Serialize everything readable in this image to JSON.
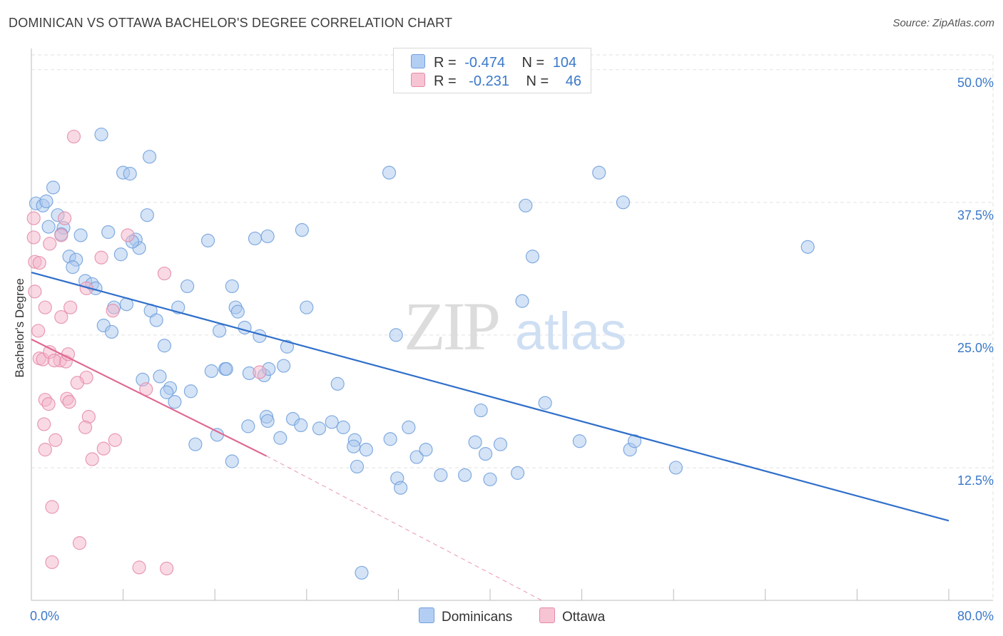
{
  "title": "DOMINICAN VS OTTAWA BACHELOR'S DEGREE CORRELATION CHART",
  "source": "Source: ZipAtlas.com",
  "watermark": {
    "zip": "ZIP",
    "atlas": "atlas"
  },
  "colors": {
    "blue_fill": "#a9c7ee",
    "blue_stroke": "#6f9fdc",
    "blue_line": "#2f6fca",
    "pink_fill": "#f4b6c9",
    "pink_stroke": "#e58aa8",
    "pink_line": "#e06892",
    "tick_label": "#3a78c9"
  },
  "legend": {
    "blue": {
      "r_label": "R =",
      "r_value": "-0.474",
      "n_label": "N =",
      "n_value": "104"
    },
    "pink": {
      "r_label": "R =",
      "r_value": "-0.231",
      "n_label": "N =",
      "n_value": "46"
    }
  },
  "bottom_legend": {
    "dominicans": "Dominicans",
    "ottawa": "Ottawa"
  },
  "chart_data": {
    "type": "scatter",
    "xlabel": "",
    "ylabel": "Bachelor's Degree",
    "xlim": [
      0,
      80
    ],
    "ylim": [
      0,
      52
    ],
    "x_tick_labels": [
      "0.0%",
      "80.0%"
    ],
    "y_tick_labels": [
      "12.5%",
      "25.0%",
      "37.5%",
      "50.0%"
    ],
    "y_ticks": [
      12.5,
      25,
      37.5,
      50
    ],
    "grid": true,
    "series": [
      {
        "name": "Dominicans",
        "color": "#a9c7ee",
        "points": [
          [
            0.4,
            37.4
          ],
          [
            1.0,
            37.2
          ],
          [
            1.3,
            37.6
          ],
          [
            1.9,
            38.9
          ],
          [
            2.3,
            36.3
          ],
          [
            1.5,
            35.2
          ],
          [
            2.8,
            35.1
          ],
          [
            4.3,
            34.4
          ],
          [
            2.6,
            34.5
          ],
          [
            3.3,
            32.4
          ],
          [
            3.9,
            32.1
          ],
          [
            3.6,
            31.4
          ],
          [
            4.7,
            30.1
          ],
          [
            5.3,
            29.8
          ],
          [
            5.6,
            29.4
          ],
          [
            6.1,
            43.9
          ],
          [
            6.7,
            34.7
          ],
          [
            7.8,
            32.6
          ],
          [
            8.0,
            40.3
          ],
          [
            8.6,
            40.2
          ],
          [
            10.3,
            41.8
          ],
          [
            10.1,
            36.3
          ],
          [
            9.1,
            34.0
          ],
          [
            9.4,
            33.2
          ],
          [
            8.3,
            27.9
          ],
          [
            7.2,
            27.6
          ],
          [
            10.4,
            27.3
          ],
          [
            10.9,
            26.4
          ],
          [
            6.3,
            25.9
          ],
          [
            7.0,
            25.3
          ],
          [
            11.6,
            24.0
          ],
          [
            12.8,
            27.6
          ],
          [
            13.6,
            29.6
          ],
          [
            15.4,
            33.9
          ],
          [
            16.4,
            25.4
          ],
          [
            16.9,
            21.8
          ],
          [
            15.7,
            21.6
          ],
          [
            17.5,
            29.6
          ],
          [
            17.8,
            27.6
          ],
          [
            18.0,
            27.2
          ],
          [
            18.6,
            25.7
          ],
          [
            19.0,
            21.4
          ],
          [
            19.5,
            34.1
          ],
          [
            19.9,
            24.9
          ],
          [
            20.3,
            21.2
          ],
          [
            20.7,
            21.8
          ],
          [
            20.6,
            34.3
          ],
          [
            22.3,
            23.9
          ],
          [
            22.0,
            22.1
          ],
          [
            23.6,
            34.9
          ],
          [
            24.0,
            27.6
          ],
          [
            26.7,
            20.4
          ],
          [
            11.2,
            21.1
          ],
          [
            9.7,
            20.8
          ],
          [
            12.1,
            20.0
          ],
          [
            11.8,
            19.6
          ],
          [
            13.9,
            19.7
          ],
          [
            12.5,
            18.7
          ],
          [
            14.3,
            14.7
          ],
          [
            16.2,
            15.6
          ],
          [
            17.5,
            13.1
          ],
          [
            18.9,
            16.4
          ],
          [
            20.5,
            17.3
          ],
          [
            20.6,
            16.9
          ],
          [
            21.7,
            15.3
          ],
          [
            22.8,
            17.1
          ],
          [
            23.5,
            16.5
          ],
          [
            25.1,
            16.2
          ],
          [
            26.2,
            16.8
          ],
          [
            27.2,
            16.3
          ],
          [
            28.2,
            15.1
          ],
          [
            28.1,
            14.5
          ],
          [
            28.4,
            12.6
          ],
          [
            29.2,
            14.2
          ],
          [
            31.3,
            15.2
          ],
          [
            31.9,
            11.5
          ],
          [
            32.2,
            10.6
          ],
          [
            32.9,
            16.3
          ],
          [
            33.6,
            13.5
          ],
          [
            34.4,
            14.2
          ],
          [
            35.7,
            11.8
          ],
          [
            37.8,
            11.8
          ],
          [
            38.7,
            14.9
          ],
          [
            40.0,
            11.4
          ],
          [
            39.6,
            13.8
          ],
          [
            40.9,
            14.7
          ],
          [
            42.4,
            12.0
          ],
          [
            42.8,
            28.2
          ],
          [
            43.1,
            37.2
          ],
          [
            43.7,
            32.4
          ],
          [
            44.8,
            18.6
          ],
          [
            39.2,
            17.9
          ],
          [
            47.8,
            15.0
          ],
          [
            49.5,
            40.3
          ],
          [
            51.6,
            37.5
          ],
          [
            52.2,
            14.2
          ],
          [
            52.6,
            15.0
          ],
          [
            56.2,
            12.5
          ],
          [
            67.7,
            33.3
          ],
          [
            28.8,
            2.6
          ],
          [
            31.2,
            40.3
          ],
          [
            31.8,
            25.0
          ],
          [
            8.8,
            33.8
          ],
          [
            17.0,
            21.8
          ]
        ]
      },
      {
        "name": "Ottawa",
        "color": "#f4b6c9",
        "points": [
          [
            3.7,
            43.7
          ],
          [
            0.2,
            36.0
          ],
          [
            2.9,
            36.0
          ],
          [
            0.2,
            34.2
          ],
          [
            2.6,
            34.4
          ],
          [
            1.6,
            33.6
          ],
          [
            8.4,
            34.4
          ],
          [
            0.3,
            31.9
          ],
          [
            0.7,
            31.8
          ],
          [
            6.1,
            32.3
          ],
          [
            11.6,
            30.8
          ],
          [
            0.3,
            29.1
          ],
          [
            4.8,
            29.4
          ],
          [
            1.2,
            27.6
          ],
          [
            3.4,
            27.6
          ],
          [
            7.1,
            27.3
          ],
          [
            2.6,
            26.7
          ],
          [
            0.6,
            25.4
          ],
          [
            0.7,
            22.8
          ],
          [
            1.0,
            22.7
          ],
          [
            1.6,
            23.4
          ],
          [
            2.5,
            22.6
          ],
          [
            3.0,
            22.5
          ],
          [
            3.2,
            23.2
          ],
          [
            2.0,
            22.6
          ],
          [
            4.8,
            21.0
          ],
          [
            4.0,
            20.5
          ],
          [
            3.1,
            19.0
          ],
          [
            1.2,
            18.9
          ],
          [
            1.5,
            18.5
          ],
          [
            3.3,
            18.7
          ],
          [
            10.0,
            19.9
          ],
          [
            5.0,
            17.3
          ],
          [
            1.1,
            16.6
          ],
          [
            2.1,
            15.1
          ],
          [
            4.7,
            16.3
          ],
          [
            7.3,
            15.1
          ],
          [
            1.2,
            14.2
          ],
          [
            6.3,
            14.3
          ],
          [
            5.3,
            13.3
          ],
          [
            1.8,
            8.8
          ],
          [
            4.2,
            5.4
          ],
          [
            1.8,
            3.6
          ],
          [
            9.4,
            3.1
          ],
          [
            11.8,
            3.0
          ],
          [
            19.9,
            21.5
          ]
        ]
      }
    ],
    "trend_lines": [
      {
        "series": "Dominicans",
        "from": [
          0,
          30.9
        ],
        "to": [
          80,
          7.5
        ]
      },
      {
        "series": "Ottawa",
        "from": [
          0,
          24.6
        ],
        "to": [
          20.5,
          13.6
        ],
        "dashed_to": [
          44.5,
          0
        ]
      }
    ]
  }
}
